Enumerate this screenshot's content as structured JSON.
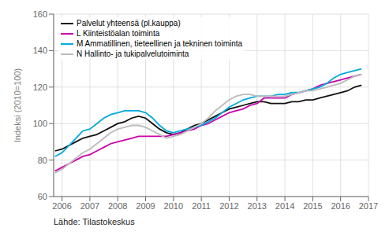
{
  "chart_data": {
    "type": "line",
    "y_label": "Indeksi (2010=100)",
    "annotations": [
      "Lähde: Tilastokeskus"
    ],
    "x": [
      2005.75,
      2006.0,
      2006.25,
      2006.5,
      2006.75,
      2007.0,
      2007.25,
      2007.5,
      2007.75,
      2008.0,
      2008.25,
      2008.5,
      2008.75,
      2009.0,
      2009.25,
      2009.5,
      2009.75,
      2010.0,
      2010.25,
      2010.5,
      2010.75,
      2011.0,
      2011.25,
      2011.5,
      2011.75,
      2012.0,
      2012.25,
      2012.5,
      2012.75,
      2013.0,
      2013.25,
      2013.5,
      2013.75,
      2014.0,
      2014.25,
      2014.5,
      2014.75,
      2015.0,
      2015.25,
      2015.5,
      2015.75,
      2016.0,
      2016.25,
      2016.5,
      2016.75
    ],
    "series": [
      {
        "name": "Palvelut yhteensä (pl.kauppa)",
        "color": "#111111",
        "values": [
          85,
          86,
          88,
          90,
          92,
          93,
          94,
          96,
          98,
          100,
          101,
          103,
          104,
          103,
          100,
          97,
          95,
          94,
          95,
          97,
          99,
          100,
          102,
          104,
          106,
          108,
          109,
          110,
          111,
          112,
          112,
          111,
          111,
          111,
          112,
          112,
          113,
          113,
          114,
          115,
          116,
          117,
          118,
          120,
          121
        ]
      },
      {
        "name": "L Kiinteistöalan toiminta",
        "color": "#cc00aa",
        "values": [
          74,
          76,
          78,
          80,
          82,
          83,
          85,
          87,
          89,
          90,
          91,
          92,
          93,
          93,
          93,
          93,
          93,
          94,
          95,
          96,
          97,
          99,
          100,
          102,
          104,
          106,
          107,
          108,
          110,
          111,
          114,
          114,
          114,
          114,
          116,
          117,
          118,
          119,
          121,
          122,
          123,
          124,
          125,
          126,
          127
        ]
      },
      {
        "name": "M Ammatillinen, tieteellinen ja tekninen toiminta",
        "color": "#00aadd",
        "values": [
          82,
          84,
          88,
          92,
          96,
          97,
          100,
          103,
          105,
          106,
          107,
          107,
          107,
          106,
          103,
          99,
          96,
          95,
          96,
          97,
          98,
          99,
          101,
          103,
          106,
          109,
          111,
          113,
          114,
          115,
          115,
          115,
          116,
          116,
          117,
          117,
          118,
          119,
          120,
          122,
          125,
          127,
          128,
          129,
          130
        ]
      },
      {
        "name": "N Hallinto- ja tukipalvelutoiminta",
        "color": "#bbbbbb",
        "values": [
          73,
          75,
          78,
          81,
          84,
          86,
          89,
          92,
          95,
          97,
          98,
          99,
          99,
          98,
          96,
          94,
          92,
          93,
          94,
          96,
          98,
          100,
          103,
          107,
          110,
          113,
          115,
          116,
          116,
          115,
          115,
          115,
          115,
          115,
          116,
          117,
          118,
          118,
          119,
          120,
          121,
          122,
          124,
          126,
          127
        ]
      }
    ],
    "xlim": [
      2005.7,
      2017.0
    ],
    "ylim": [
      60,
      160
    ],
    "xticks": [
      2006,
      2007,
      2008,
      2009,
      2010,
      2011,
      2012,
      2013,
      2014,
      2015,
      2016,
      2017
    ],
    "yticks": [
      60,
      80,
      100,
      120,
      140,
      160
    ],
    "grid": true,
    "legend": "upper left"
  }
}
